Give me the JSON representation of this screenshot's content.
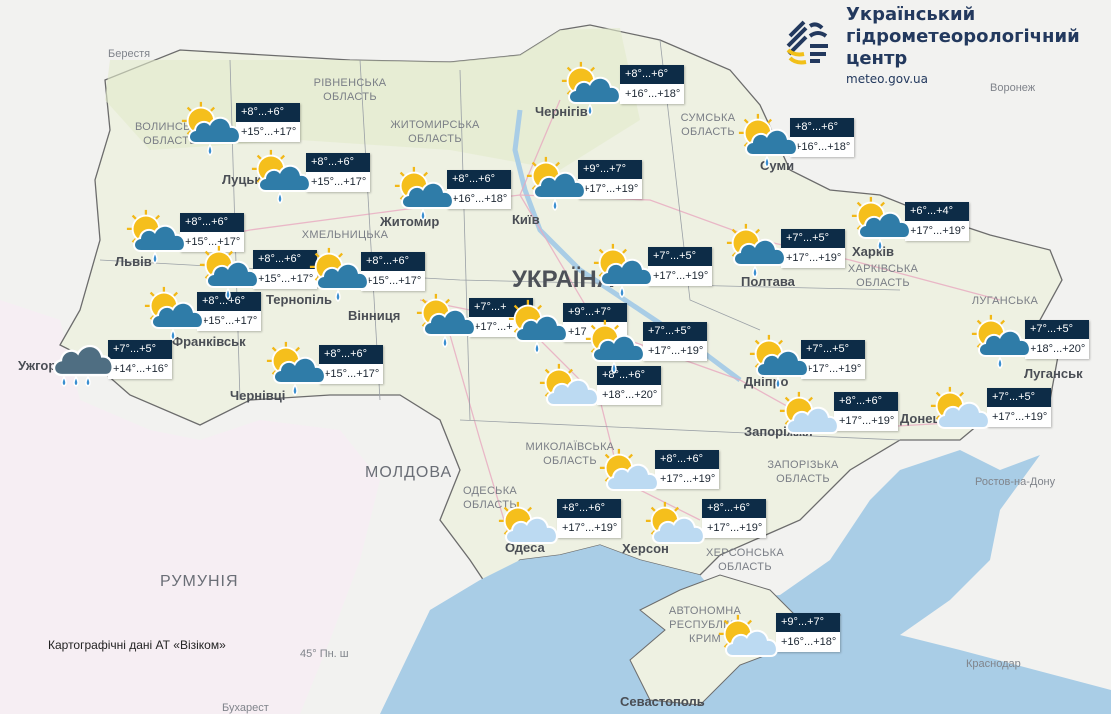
{
  "header": {
    "org_name_lines": [
      "Український",
      "гідрометеорологічний",
      "центр"
    ],
    "website": "meteo.gov.ua",
    "logo_colors": {
      "navy": "#23395e",
      "yellow": "#f2c018"
    }
  },
  "attribution": "Картографічні дані АТ «Візіком»",
  "colors": {
    "box_header": "#0d2c47",
    "box_body": "#ffffff",
    "sea": "#a9cde6",
    "land": "#eef1e2"
  },
  "labels": {
    "country": "УКРАЇНА",
    "cities": [
      "Луцьк",
      "Житомир",
      "Київ",
      "Чернігів",
      "Суми",
      "Львів",
      "Тернопіль",
      "Франківськ",
      "Ужгород",
      "Чернівці",
      "Вінниця",
      "Полтава",
      "Харків",
      "Дніпро",
      "Запоріжжя",
      "Донецьк",
      "Луганськ",
      "Одеса",
      "Херсон",
      "Севастополь"
    ],
    "regions": [
      "ВОЛИНСЬКА ОБЛАСТЬ",
      "РІВНЕНСЬКА ОБЛАСТЬ",
      "ЖИТОМИРСЬКА ОБЛАСТЬ",
      "ХМЕЛЬНИЦЬКА",
      "СУМСЬКА ОБЛАСТЬ",
      "ХАРКІВСЬКА ОБЛАСТЬ",
      "ЛУГАНСЬКА",
      "МИКОЛАЇВСЬКА ОБЛАСТЬ",
      "ОДЕСЬКА ОБЛАСТЬ",
      "ЗАПОРІЗЬКА ОБЛАСТЬ",
      "ХЕРСОНСЬКА ОБЛАСТЬ",
      "АВТОНОМНА РЕСПУБЛІКА КРИМ"
    ],
    "foreign": [
      "Берестя",
      "Воронеж",
      "Ростов-на-Дону",
      "Краснодар",
      "Бухарест",
      "МОЛДОВА",
      "РУМУНІЯ",
      "45° Пн. ш"
    ]
  },
  "markers": [
    {
      "icon": "sun-cloud-rain-icon",
      "night": "+8°...+6°",
      "day": "+15°...+17°"
    },
    {
      "icon": "sun-cloud-rain-icon",
      "night": "+8°...+6°",
      "day": "+15°...+17°"
    },
    {
      "icon": "sun-cloud-rain-icon",
      "night": "+8°...+6°",
      "day": "+16°...+18°"
    },
    {
      "icon": "sun-cloud-rain-icon",
      "night": "+9°...+7°",
      "day": "+17°...+19°"
    },
    {
      "icon": "sun-cloud-rain-icon",
      "night": "+8°...+6°",
      "day": "+16°...+18°"
    },
    {
      "icon": "sun-cloud-rain-icon",
      "night": "+8°...+6°",
      "day": "+16°...+18°"
    },
    {
      "icon": "sun-cloud-rain-icon",
      "night": "+6°...+4°",
      "day": "+17°...+19°"
    },
    {
      "icon": "sun-cloud-rain-icon",
      "night": "+7°...+5°",
      "day": "+17°...+19°"
    },
    {
      "icon": "sun-cloud-rain-icon",
      "night": "+7°...+5°",
      "day": "+17°...+19°"
    },
    {
      "icon": "sun-cloud-rain-icon",
      "night": "+8°...+6°",
      "day": "+15°...+17°"
    },
    {
      "icon": "sun-cloud-rain-icon",
      "night": "+8°...+6°",
      "day": "+15°...+17°"
    },
    {
      "icon": "sun-cloud-rain-icon",
      "night": "+8°...+6°",
      "day": "+15°...+17°"
    },
    {
      "icon": "sun-cloud-rain-icon",
      "night": "+8°...+6°",
      "day": "+15°...+17°"
    },
    {
      "icon": "rain-cloud-icon",
      "night": "+7°...+5°",
      "day": "+14°...+16°"
    },
    {
      "icon": "sun-cloud-rain-icon",
      "night": "+8°...+6°",
      "day": "+15°...+17°"
    },
    {
      "icon": "sun-cloud-rain-icon",
      "night": "+7°...+",
      "day": "+17°...+"
    },
    {
      "icon": "sun-cloud-rain-icon",
      "night": "+9°...+7°",
      "day": "+17"
    },
    {
      "icon": "sun-cloud-rain-icon",
      "night": "+7°...+5°",
      "day": "+17°...+19°"
    },
    {
      "icon": "sun-cloud-icon",
      "night": "+8°...+6°",
      "day": "+18°...+20°"
    },
    {
      "icon": "sun-cloud-rain-icon",
      "night": "+7°...+5°",
      "day": "+17°...+19°"
    },
    {
      "icon": "sun-cloud-rain-icon",
      "night": "+7°...+5°",
      "day": "+18°...+20°"
    },
    {
      "icon": "sun-cloud-icon",
      "night": "+8°...+6°",
      "day": "+17°...+19°"
    },
    {
      "icon": "sun-cloud-icon",
      "night": "+7°...+5°",
      "day": "+17°...+19°"
    },
    {
      "icon": "sun-cloud-icon",
      "night": "+8°...+6°",
      "day": "+17°...+19°"
    },
    {
      "icon": "sun-cloud-icon",
      "night": "+8°...+6°",
      "day": "+17°...+19°"
    },
    {
      "icon": "sun-cloud-icon",
      "night": "+8°...+6°",
      "day": "+17°...+19°"
    },
    {
      "icon": "sun-cloud-icon",
      "night": "+9°...+7°",
      "day": "+16°...+18°"
    }
  ]
}
